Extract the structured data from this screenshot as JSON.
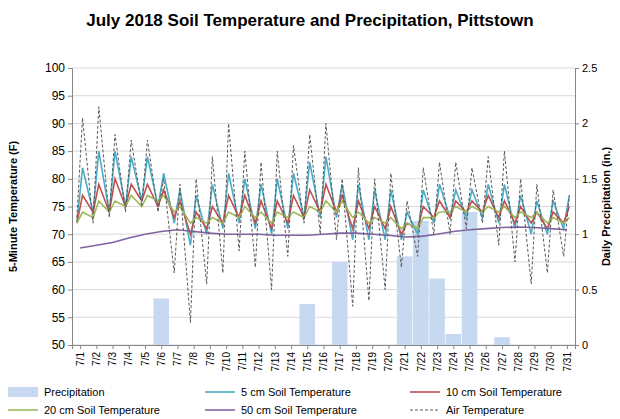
{
  "chart_data": {
    "type": "line",
    "title": "July 2018 Soil Temperature and Precipitation, Pittstown",
    "y_label": "5-Minute Temperature (F)",
    "y2_label": "Daily Precipitation (in.)",
    "grid": true,
    "legend": "bottom",
    "xlim": [
      0.5,
      31.5
    ],
    "xticks": [
      {
        "value": 1,
        "label": "7/1"
      },
      {
        "value": 2,
        "label": "7/2"
      },
      {
        "value": 3,
        "label": "7/3"
      },
      {
        "value": 4,
        "label": "7/4"
      },
      {
        "value": 5,
        "label": "7/5"
      },
      {
        "value": 6,
        "label": "7/6"
      },
      {
        "value": 7,
        "label": "7/7"
      },
      {
        "value": 8,
        "label": "7/8"
      },
      {
        "value": 9,
        "label": "7/9"
      },
      {
        "value": 10,
        "label": "7/10"
      },
      {
        "value": 11,
        "label": "7/11"
      },
      {
        "value": 12,
        "label": "7/12"
      },
      {
        "value": 13,
        "label": "7/13"
      },
      {
        "value": 14,
        "label": "7/14"
      },
      {
        "value": 15,
        "label": "7/15"
      },
      {
        "value": 16,
        "label": "7/16"
      },
      {
        "value": 17,
        "label": "7/17"
      },
      {
        "value": 18,
        "label": "7/18"
      },
      {
        "value": 19,
        "label": "7/19"
      },
      {
        "value": 20,
        "label": "7/20"
      },
      {
        "value": 21,
        "label": "7/21"
      },
      {
        "value": 22,
        "label": "7/22"
      },
      {
        "value": 23,
        "label": "7/23"
      },
      {
        "value": 24,
        "label": "7/24"
      },
      {
        "value": 25,
        "label": "7/25"
      },
      {
        "value": 26,
        "label": "7/26"
      },
      {
        "value": 27,
        "label": "7/27"
      },
      {
        "value": 28,
        "label": "7/28"
      },
      {
        "value": 29,
        "label": "7/29"
      },
      {
        "value": 30,
        "label": "7/30"
      },
      {
        "value": 31,
        "label": "7/31"
      }
    ],
    "ylim": [
      50,
      100
    ],
    "yticks": [
      50,
      55,
      60,
      65,
      70,
      75,
      80,
      85,
      90,
      95,
      100
    ],
    "y2lim": [
      0,
      2.5
    ],
    "y2ticks": [
      0,
      0.5,
      1,
      1.5,
      2,
      2.5
    ],
    "x": [
      0.8,
      1.15,
      1.8,
      2.15,
      2.8,
      3.15,
      3.8,
      4.15,
      4.8,
      5.15,
      5.8,
      6.15,
      6.8,
      7.15,
      7.8,
      8.15,
      8.8,
      9.15,
      9.8,
      10.15,
      10.8,
      11.15,
      11.8,
      12.15,
      12.8,
      13.15,
      13.8,
      14.15,
      14.8,
      15.15,
      15.8,
      16.15,
      16.8,
      17.15,
      17.8,
      18.15,
      18.8,
      19.15,
      19.8,
      20.15,
      20.8,
      21.15,
      21.8,
      22.15,
      22.8,
      23.15,
      23.8,
      24.15,
      24.8,
      25.15,
      25.8,
      26.15,
      26.8,
      27.15,
      27.8,
      28.15,
      28.8,
      29.15,
      29.8,
      30.15,
      30.8,
      31.15
    ],
    "series": [
      {
        "name": "Precipitation",
        "type": "bar",
        "axis": "y2",
        "color": "#c6d9f1",
        "x": [
          1,
          2,
          3,
          4,
          5,
          6,
          7,
          8,
          9,
          10,
          11,
          12,
          13,
          14,
          15,
          16,
          17,
          18,
          19,
          20,
          21,
          22,
          23,
          24,
          25,
          26,
          27,
          28,
          29,
          30,
          31
        ],
        "values": [
          0,
          0,
          0,
          0,
          0,
          0.42,
          0,
          0,
          0,
          0,
          0,
          0,
          0,
          0,
          0.37,
          0,
          0.75,
          0,
          0,
          0,
          0.8,
          1.12,
          0.6,
          0.1,
          1.2,
          0,
          0.07,
          0,
          0,
          0,
          0
        ]
      },
      {
        "name": "5 cm Soil Temperature",
        "type": "line",
        "color": "#4bacc6",
        "line_style": "solid",
        "values": [
          72,
          82,
          74,
          85,
          74,
          85,
          75,
          84,
          76,
          84,
          75,
          81,
          72,
          78,
          68,
          77,
          70,
          79,
          71,
          81,
          72,
          80,
          71,
          79,
          70,
          80,
          71,
          81,
          73,
          83,
          73,
          84,
          73,
          79,
          69,
          79,
          69,
          78,
          69,
          78,
          69,
          74,
          70,
          78,
          72,
          79,
          73,
          78,
          73,
          78,
          73,
          79,
          72,
          79,
          71,
          77,
          70,
          76,
          70,
          76,
          71,
          77
        ]
      },
      {
        "name": "10 cm Soil Temperature",
        "type": "line",
        "color": "#c0504d",
        "line_style": "solid",
        "values": [
          72,
          77,
          74,
          79,
          74,
          80,
          75,
          79,
          76,
          79,
          75,
          78,
          73,
          76,
          70,
          74,
          71,
          75,
          72,
          77,
          73,
          77,
          72,
          76,
          71,
          76,
          72,
          77,
          73,
          78,
          74,
          79,
          74,
          77,
          71,
          76,
          71,
          75,
          71,
          75,
          70,
          72,
          71,
          75,
          73,
          76,
          73,
          76,
          74,
          76,
          74,
          77,
          73,
          76,
          72,
          75,
          72,
          74,
          71,
          74,
          72,
          75
        ]
      },
      {
        "name": "20 cm Soil Temperature",
        "type": "line",
        "color": "#9bbb59",
        "line_style": "solid",
        "values": [
          72,
          74,
          73,
          76,
          74,
          76,
          75,
          77,
          75,
          77,
          76,
          77,
          74,
          75,
          72,
          73,
          72,
          73,
          72,
          74,
          73,
          75,
          73,
          74,
          72,
          74,
          73,
          74,
          73,
          75,
          74,
          76,
          74,
          76,
          73,
          74,
          72,
          73,
          72,
          73,
          71,
          72,
          71,
          73,
          73,
          74,
          74,
          75,
          74,
          75,
          74,
          75,
          74,
          75,
          73,
          74,
          73,
          74,
          72,
          73,
          72,
          73
        ]
      },
      {
        "name": "50 cm Soil Temperature",
        "type": "line",
        "color": "#8064a2",
        "line_style": "solid",
        "x": [
          1,
          2,
          3,
          4,
          5,
          6,
          7,
          8,
          9,
          10,
          11,
          12,
          13,
          14,
          15,
          16,
          17,
          18,
          19,
          20,
          21,
          22,
          23,
          24,
          25,
          26,
          27,
          28,
          29,
          30,
          31
        ],
        "values": [
          67.5,
          68,
          68.5,
          69.3,
          70,
          70.5,
          70.8,
          70.5,
          70.2,
          70,
          70,
          70,
          69.8,
          69.8,
          69.8,
          70,
          70.2,
          70.2,
          70,
          69.8,
          69.5,
          69.6,
          70,
          70.5,
          70.8,
          71,
          71.2,
          71.3,
          71.2,
          71,
          70.8
        ]
      },
      {
        "name": "Air Temperature",
        "type": "line",
        "color": "#595959",
        "line_style": "dashed",
        "values": [
          73,
          91,
          72,
          93,
          73,
          88,
          74,
          87,
          75,
          87,
          74,
          80,
          63,
          79,
          54,
          80,
          61,
          84,
          63,
          90,
          67,
          85,
          64,
          83,
          60,
          85,
          66,
          86,
          72,
          88,
          70,
          90,
          69,
          80,
          57,
          82,
          58,
          80,
          60,
          81,
          64,
          76,
          66,
          82,
          70,
          83,
          70,
          83,
          71,
          82,
          72,
          84,
          68,
          85,
          65,
          80,
          61,
          79,
          63,
          78,
          66,
          77
        ]
      }
    ]
  }
}
